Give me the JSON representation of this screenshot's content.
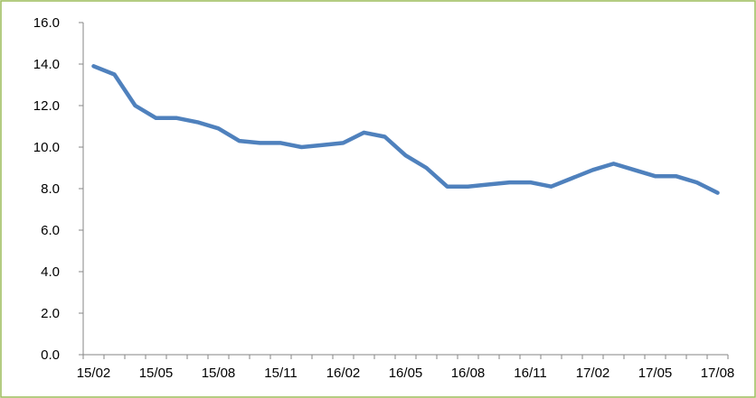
{
  "chart_data": {
    "type": "line",
    "categories": [
      "15/02",
      null,
      null,
      "15/05",
      null,
      null,
      "15/08",
      null,
      null,
      "15/11",
      null,
      null,
      "16/02",
      null,
      null,
      "16/05",
      null,
      null,
      "16/08",
      null,
      null,
      "16/11",
      null,
      null,
      "17/02",
      null,
      null,
      "17/05",
      null,
      null,
      "17/08"
    ],
    "series": [
      {
        "color": "#4f81bd",
        "values": [
          13.9,
          13.5,
          12.0,
          11.4,
          11.4,
          11.2,
          10.9,
          10.3,
          10.2,
          10.2,
          10.0,
          10.1,
          10.2,
          10.7,
          10.5,
          9.6,
          9.0,
          8.1,
          8.1,
          8.2,
          8.3,
          8.3,
          8.1,
          8.5,
          8.9,
          9.2,
          8.9,
          8.6,
          8.6,
          8.3,
          7.8
        ]
      }
    ],
    "ylim": [
      0,
      16
    ],
    "yticks": [
      {
        "value": 0,
        "label": "0.0"
      },
      {
        "value": 2,
        "label": "2.0"
      },
      {
        "value": 4,
        "label": "4.0"
      },
      {
        "value": 6,
        "label": "6.0"
      },
      {
        "value": 8,
        "label": "8.0"
      },
      {
        "value": 10,
        "label": "10.0"
      },
      {
        "value": 12,
        "label": "12.0"
      },
      {
        "value": 14,
        "label": "14.0"
      },
      {
        "value": 16,
        "label": "16.0"
      }
    ],
    "grid": false
  }
}
